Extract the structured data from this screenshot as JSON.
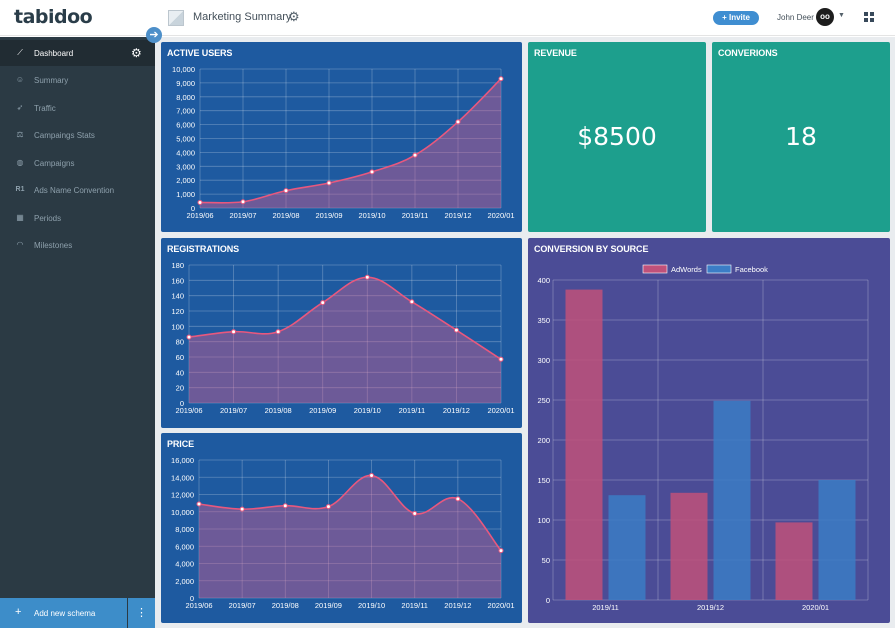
{
  "app": {
    "logo": "tabidoo",
    "page_title": "Marketing Summary"
  },
  "header": {
    "invite_label": "Invite",
    "user_name": "John Deer",
    "avatar_text": "oo"
  },
  "sidebar": {
    "items": [
      {
        "label": "Dashboard",
        "icon": "chart-line-icon",
        "active": true
      },
      {
        "label": "Summary",
        "icon": "smiley-icon",
        "active": false
      },
      {
        "label": "Traffic",
        "icon": "rocket-icon",
        "active": false
      },
      {
        "label": "Campaings Stats",
        "icon": "scales-icon",
        "active": false
      },
      {
        "label": "Campaigns",
        "icon": "globe-icon",
        "active": false
      },
      {
        "label": "Ads Name Convention",
        "icon": "r1-icon",
        "active": false
      },
      {
        "label": "Periods",
        "icon": "calendar-icon",
        "active": false
      },
      {
        "label": "Milestones",
        "icon": "wifi-icon",
        "active": false
      }
    ],
    "add_schema_label": "Add new schema"
  },
  "cards": {
    "active_users": {
      "title": "ACTIVE USERS"
    },
    "revenue": {
      "title": "REVENUE",
      "value": "$8500"
    },
    "conversions": {
      "title": "CONVERIONS",
      "value": "18"
    },
    "registrations": {
      "title": "REGISTRATIONS"
    },
    "price": {
      "title": "PRICE"
    },
    "conversion_by_source": {
      "title": "CONVERSION BY SOURCE"
    }
  },
  "colors": {
    "line": "#e8587e",
    "bar_adwords": "#c0517a",
    "bar_facebook": "#3b7dc6"
  },
  "chart_data": [
    {
      "id": "active_users",
      "type": "area",
      "title": "ACTIVE USERS",
      "x": [
        "2019/06",
        "2019/07",
        "2019/08",
        "2019/09",
        "2019/10",
        "2019/11",
        "2019/12",
        "2020/01"
      ],
      "series": [
        {
          "values": [
            400,
            450,
            1250,
            1800,
            2600,
            3800,
            6200,
            9300
          ]
        }
      ],
      "ylim": [
        0,
        10000
      ],
      "yticks": [
        "0",
        "1,000",
        "2,000",
        "3,000",
        "4,000",
        "5,000",
        "6,000",
        "7,000",
        "8,000",
        "9,000",
        "10,000"
      ],
      "grid": true
    },
    {
      "id": "registrations",
      "type": "area",
      "title": "REGISTRATIONS",
      "x": [
        "2019/06",
        "2019/07",
        "2019/08",
        "2019/09",
        "2019/10",
        "2019/11",
        "2019/12",
        "2020/01"
      ],
      "series": [
        {
          "values": [
            86,
            93,
            93,
            131,
            164,
            132,
            95,
            57
          ]
        }
      ],
      "ylim": [
        0,
        180
      ],
      "yticks": [
        "0",
        "20",
        "40",
        "60",
        "80",
        "100",
        "120",
        "140",
        "160",
        "180"
      ],
      "grid": true
    },
    {
      "id": "price",
      "type": "area",
      "title": "PRICE",
      "x": [
        "2019/06",
        "2019/07",
        "2019/08",
        "2019/09",
        "2019/10",
        "2019/11",
        "2019/12",
        "2020/01"
      ],
      "series": [
        {
          "values": [
            10900,
            10300,
            10700,
            10600,
            14200,
            9800,
            11500,
            5500
          ]
        }
      ],
      "ylim": [
        0,
        16000
      ],
      "yticks": [
        "0",
        "2,000",
        "4,000",
        "6,000",
        "8,000",
        "10,000",
        "12,000",
        "14,000",
        "16,000"
      ],
      "grid": true
    },
    {
      "id": "conversion_by_source",
      "type": "bar",
      "title": "CONVERSION BY SOURCE",
      "categories": [
        "2019/11",
        "2019/12",
        "2020/01"
      ],
      "series": [
        {
          "name": "AdWords",
          "values": [
            388,
            134,
            97
          ]
        },
        {
          "name": "Facebook",
          "values": [
            131,
            249,
            150
          ]
        }
      ],
      "ylim": [
        0,
        400
      ],
      "yticks": [
        "0",
        "50",
        "100",
        "150",
        "200",
        "250",
        "300",
        "350",
        "400"
      ],
      "legend": "top",
      "grid": true
    }
  ]
}
